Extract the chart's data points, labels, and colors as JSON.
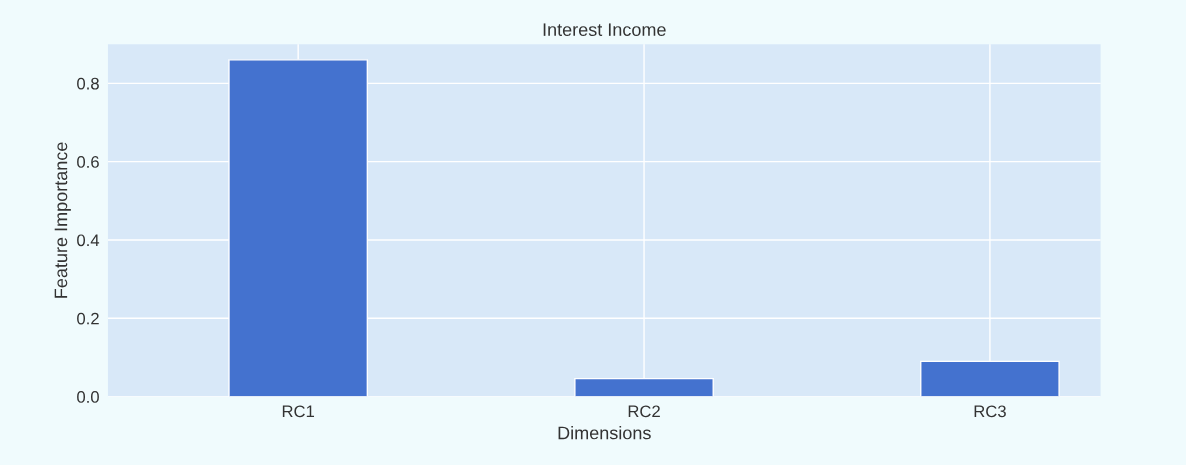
{
  "chart_data": {
    "type": "bar",
    "title": "Interest Income",
    "xlabel": "Dimensions",
    "ylabel": "Feature Importance",
    "categories": [
      "RC1",
      "RC2",
      "RC3"
    ],
    "values": [
      0.86,
      0.046,
      0.09
    ],
    "color": "#4472cf",
    "ylim": [
      0,
      0.9
    ],
    "yticks": [
      {
        "value": 0,
        "label": "0.0"
      },
      0.2,
      0.4,
      0.6,
      0.8
    ],
    "grid": true
  }
}
